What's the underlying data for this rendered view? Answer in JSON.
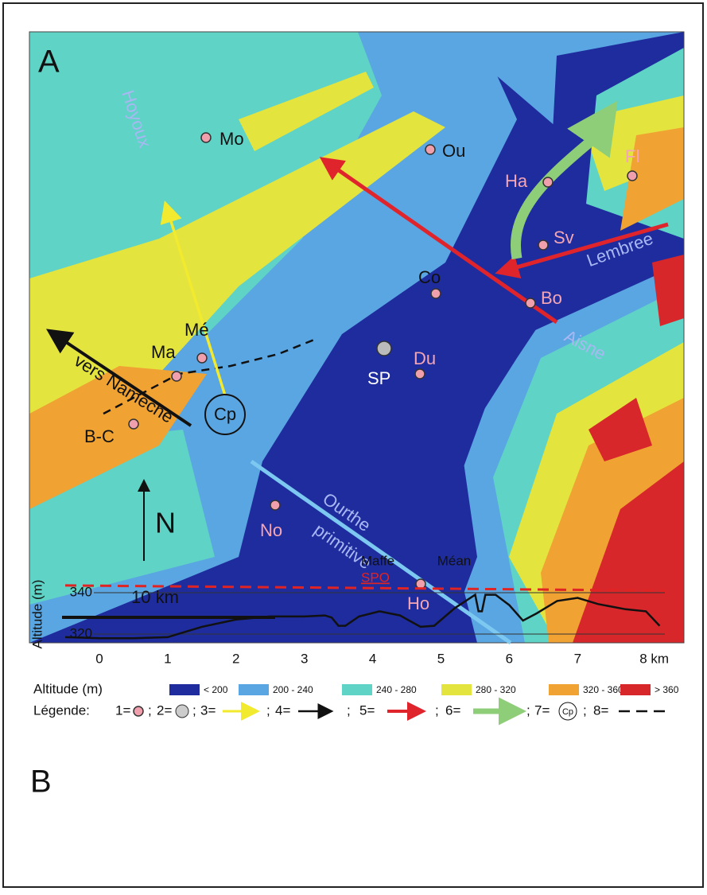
{
  "panel_a": {
    "letter": "A",
    "places": [
      "Mo",
      "Ou",
      "Ha",
      "Fl",
      "Sv",
      "Co",
      "Bo",
      "Mé",
      "Ma",
      "SP",
      "Du",
      "B-C",
      "No",
      "Ho"
    ],
    "rivers": [
      "Hoyoux",
      "Lembree",
      "Aisne",
      "Ourthe",
      "primitive"
    ],
    "direction": "vers Namèche",
    "capture_point": "Cp",
    "north": "N",
    "scale": "10 km"
  },
  "legend": {
    "altitude_title": "Altitude (m)",
    "classes": [
      {
        "label": "< 200",
        "color": "#1e2c9e"
      },
      {
        "label": "200 - 240",
        "color": "#5aa6e2"
      },
      {
        "label": "240 - 280",
        "color": "#5fd3c6"
      },
      {
        "label": "280 - 320",
        "color": "#e4e43e"
      },
      {
        "label": "320 - 360",
        "color": "#f0a233"
      },
      {
        "label": "> 360",
        "color": "#d8272b"
      }
    ],
    "title": "Légende:",
    "keys": [
      "1=",
      "2=",
      "3=",
      "4=",
      "5=",
      "6=",
      "7=",
      "8="
    ],
    "separator": ";",
    "cp": "Cp"
  },
  "chart_data": {
    "type": "line",
    "letter": "B",
    "y_label": "Altitude (m)",
    "x": [
      -0.5,
      0,
      0.5,
      1,
      1.2,
      1.5,
      2,
      2.5,
      3,
      3.3,
      3.4,
      3.5,
      3.6,
      3.8,
      4.1,
      4.4,
      4.7,
      4.9,
      5.2,
      5.5,
      5.55,
      5.6,
      5.65,
      5.8,
      6,
      6.2,
      6.4,
      6.7,
      7,
      7.3,
      7.7,
      8,
      8.2
    ],
    "series": [
      {
        "color": "#111111",
        "values": [
          318.5,
          318,
          318,
          318.5,
          320.5,
          323.5,
          327,
          328.5,
          328.5,
          329,
          328,
          324,
          324,
          328.5,
          331,
          329,
          323.5,
          324,
          332.5,
          339,
          331,
          331,
          339,
          339,
          334,
          326.5,
          330,
          336,
          337.5,
          334.5,
          332,
          331,
          324
        ]
      }
    ],
    "reference": {
      "name": "SPO",
      "color": "#e02424",
      "x": [
        -0.5,
        8.3
      ],
      "values": [
        343.5,
        341
      ]
    },
    "annotations": [
      "Maffe",
      "Méan"
    ],
    "xlim": [
      -0.5,
      8.3
    ],
    "ylim": [
      315,
      350
    ],
    "xticks": [
      0,
      1,
      2,
      3,
      4,
      5,
      6,
      7,
      {
        "value": 8,
        "label": "8 km"
      }
    ],
    "yticks": [
      320,
      340
    ],
    "grid": true
  }
}
